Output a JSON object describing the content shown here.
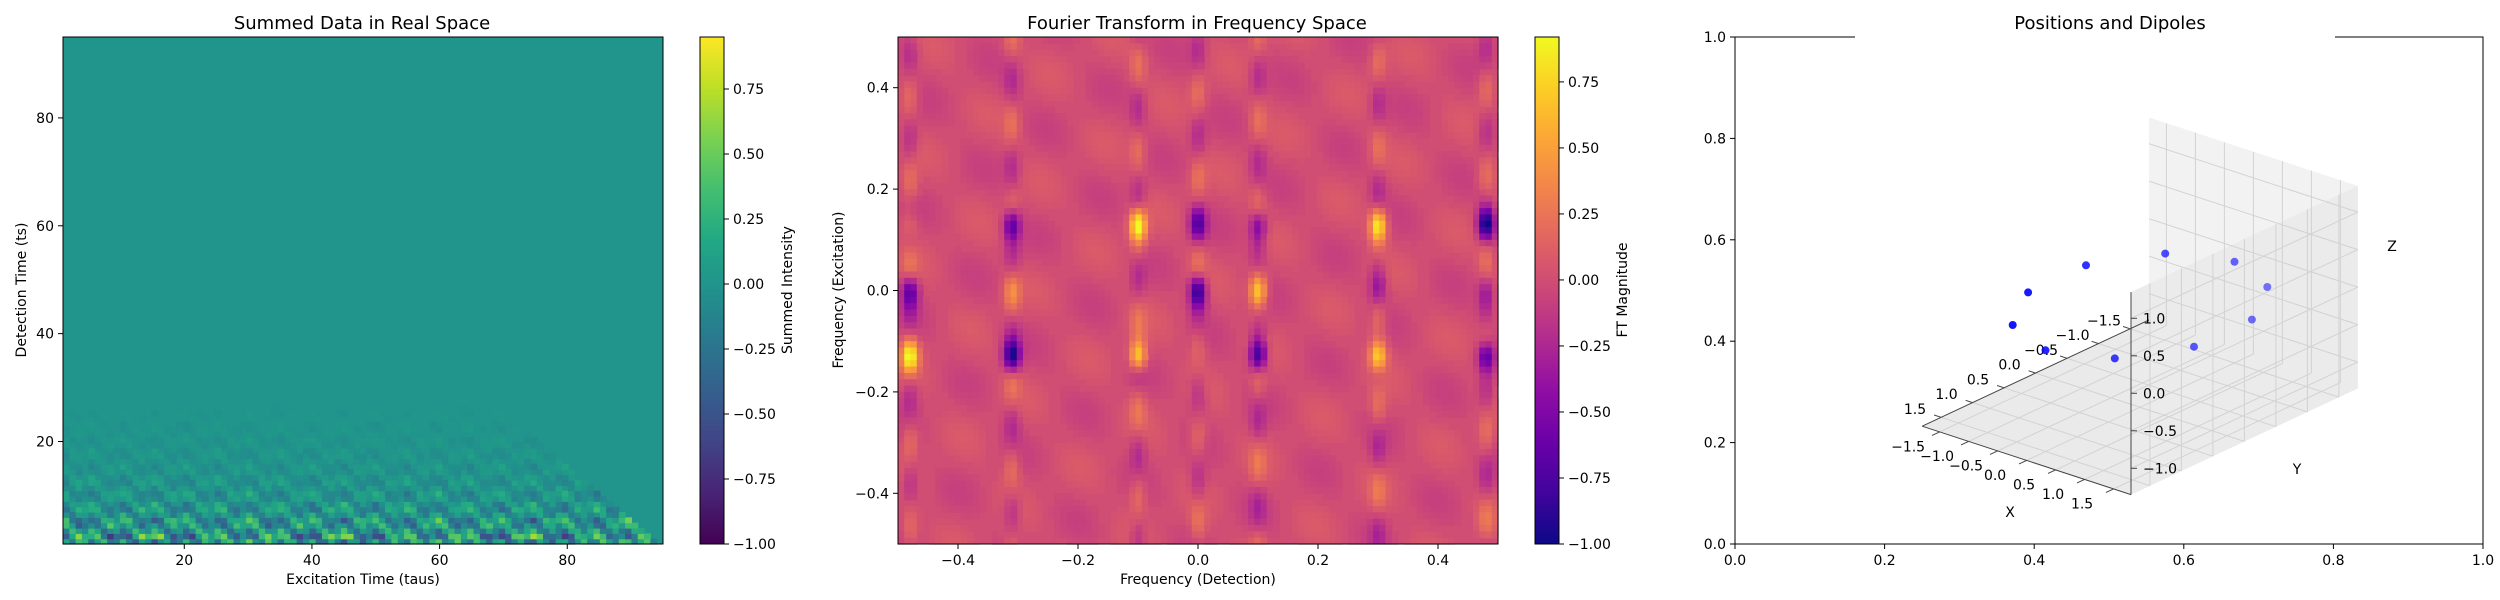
{
  "chart_data": [
    {
      "type": "heatmap",
      "title": "Summed Data in Real Space",
      "xlabel": "Excitation Time (taus)",
      "ylabel": "Detection Time (ts)",
      "xlim": [
        1,
        95
      ],
      "ylim": [
        1,
        95
      ],
      "xticks": [
        "20",
        "40",
        "60",
        "80"
      ],
      "yticks": [
        "20",
        "40",
        "60",
        "80"
      ],
      "colormap": "viridis",
      "colorbar": {
        "label": "Summed Intensity",
        "range": [
          -1.0,
          0.95
        ],
        "ticks": [
          "0.75",
          "0.50",
          "0.25",
          "0.00",
          "−0.25",
          "−0.50",
          "−0.75",
          "−1.00"
        ]
      },
      "background_value": 0.0,
      "pattern": "oscillating signal confined to the triangle where excitation + detection time <= 95, strongest for detection times below 20"
    },
    {
      "type": "heatmap",
      "title": "Fourier Transform in Frequency Space",
      "xlabel": "Frequency (Detection)",
      "ylabel": "Frequency (Excitation)",
      "xlim": [
        -0.5,
        0.5
      ],
      "ylim": [
        -0.5,
        0.5
      ],
      "xticks": [
        "−0.4",
        "−0.2",
        "0.0",
        "0.2",
        "0.4"
      ],
      "yticks": [
        "−0.4",
        "−0.2",
        "0.0",
        "0.2",
        "0.4"
      ],
      "colormap": "plasma",
      "colorbar": {
        "label": "FT Magnitude",
        "range": [
          -1.0,
          0.92
        ],
        "ticks": [
          "0.75",
          "0.50",
          "0.25",
          "0.00",
          "−0.25",
          "−0.50",
          "−0.75",
          "−1.00"
        ]
      },
      "background_value": 0.0,
      "peak_columns": [
        -0.48,
        -0.31,
        -0.1,
        0.0,
        0.1,
        0.3,
        0.48
      ],
      "peak_rows": [
        0.13,
        -0.13,
        0.0
      ]
    },
    {
      "type": "scatter",
      "title": "Positions and Dipoles",
      "xlabel": "X",
      "ylabel": "Y",
      "zlabel": "Z",
      "xticks": [
        "−1.5",
        "−1.0",
        "−0.5",
        "0.0",
        "0.5",
        "1.0",
        "1.5"
      ],
      "yticks": [
        "−1.5",
        "−1.0",
        "−0.5",
        "0.0",
        "0.5",
        "1.0",
        "1.5"
      ],
      "zticks": [
        "−1.0",
        "−0.5",
        "0.0",
        "0.5",
        "1.0"
      ],
      "outer_xticks": [
        "0.0",
        "0.2",
        "0.4",
        "0.6",
        "0.8",
        "1.0"
      ],
      "outer_yticks": [
        "0.0",
        "0.2",
        "0.4",
        "0.6",
        "0.8",
        "1.0"
      ],
      "point_color": "#0000ff",
      "points": [
        [
          1.5,
          0.0,
          0.0
        ],
        [
          1.21,
          0.88,
          0.0
        ],
        [
          0.46,
          1.43,
          0.0
        ],
        [
          -0.46,
          1.43,
          0.0
        ],
        [
          -1.21,
          0.88,
          0.0
        ],
        [
          -1.5,
          0.0,
          0.0
        ],
        [
          -1.21,
          -0.88,
          0.0
        ],
        [
          -0.46,
          -1.43,
          0.0
        ],
        [
          0.46,
          -1.43,
          0.0
        ],
        [
          1.21,
          -0.88,
          0.0
        ]
      ]
    }
  ]
}
